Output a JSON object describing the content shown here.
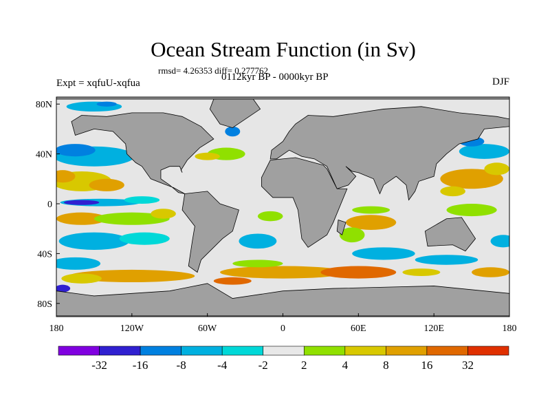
{
  "chart_data": {
    "type": "heatmap",
    "title": "Ocean Stream Function (in Sv)",
    "subtitle": "rmsd= 4.26353 diff= 0.277762",
    "period": "0112kyr BP - 0000kyr BP",
    "experiment": "Expt = xqfuU-xqfua",
    "season": "DJF",
    "x_ticks": [
      "180",
      "120W",
      "60W",
      "0",
      "60E",
      "120E",
      "180"
    ],
    "x_tick_values": [
      -180,
      -120,
      -60,
      0,
      60,
      120,
      180
    ],
    "y_ticks": [
      "80N",
      "40N",
      "0",
      "40S",
      "80S"
    ],
    "y_tick_values": [
      80,
      40,
      0,
      -40,
      -80
    ],
    "xlim": [
      -180,
      180
    ],
    "ylim": [
      -90,
      90
    ],
    "land_color": "#a0a0a0",
    "colorbar": {
      "labels": [
        "-32",
        "-16",
        "-8",
        "-4",
        "-2",
        "2",
        "4",
        "8",
        "16",
        "32"
      ],
      "levels": [
        -32,
        -16,
        -8,
        -4,
        -2,
        2,
        4,
        8,
        16,
        32
      ],
      "colors": [
        "#8000e0",
        "#3020d0",
        "#0080e0",
        "#00b0e0",
        "#00d8d8",
        "#e8e8e8",
        "#90e000",
        "#d8c800",
        "#e0a000",
        "#e06800",
        "#e03000"
      ]
    }
  }
}
